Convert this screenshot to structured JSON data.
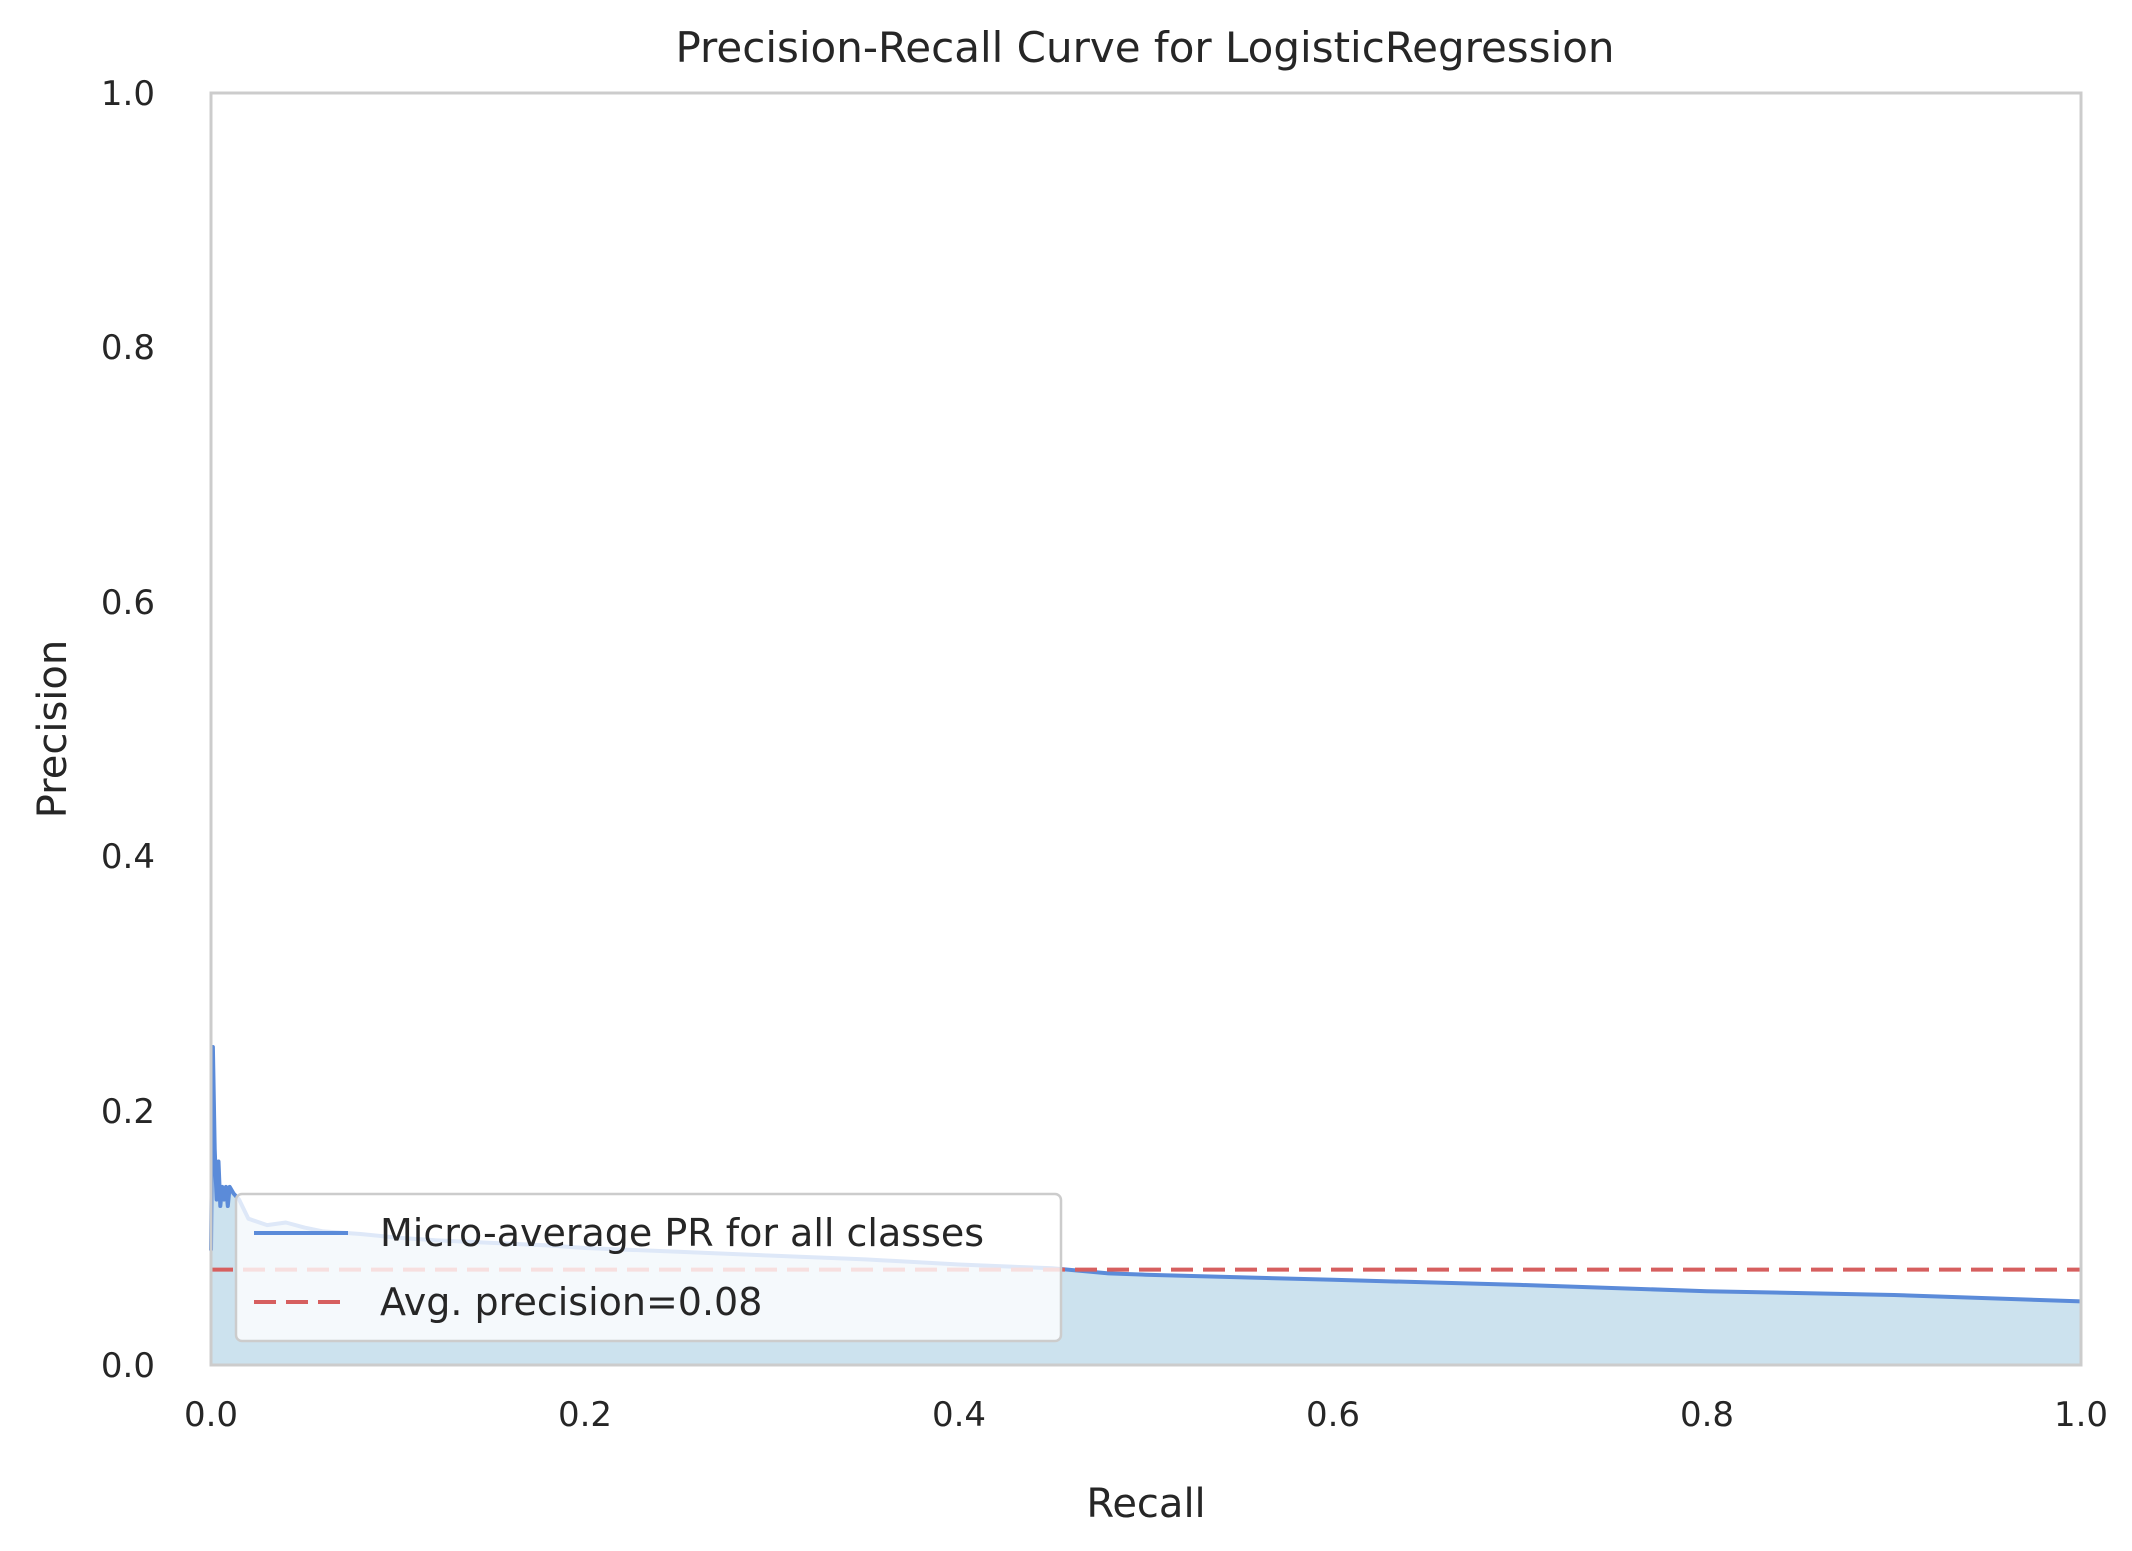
{
  "chart_data": {
    "type": "line",
    "title": "Precision-Recall Curve for LogisticRegression",
    "xlabel": "Recall",
    "ylabel": "Precision",
    "xlim": [
      0.0,
      1.0
    ],
    "ylim": [
      0.0,
      1.0
    ],
    "xticks": [
      "0.0",
      "0.2",
      "0.4",
      "0.6",
      "0.8",
      "1.0"
    ],
    "yticks": [
      "0.0",
      "0.2",
      "0.4",
      "0.6",
      "0.8",
      "1.0"
    ],
    "grid": false,
    "legend_position": "lower-left",
    "series": [
      {
        "name": "Micro-average PR for all classes",
        "style": "solid",
        "color": "#5b8bd9",
        "fill": "#cce2ee",
        "x": [
          0.0,
          0.001,
          0.002,
          0.003,
          0.004,
          0.005,
          0.006,
          0.007,
          0.008,
          0.009,
          0.01,
          0.012,
          0.015,
          0.02,
          0.03,
          0.04,
          0.05,
          0.06,
          0.08,
          0.1,
          0.12,
          0.15,
          0.18,
          0.2,
          0.25,
          0.3,
          0.35,
          0.4,
          0.45,
          0.48,
          0.5,
          0.6,
          0.7,
          0.8,
          0.9,
          1.0
        ],
        "y": [
          0.09,
          0.25,
          0.17,
          0.13,
          0.16,
          0.125,
          0.14,
          0.13,
          0.14,
          0.125,
          0.14,
          0.135,
          0.13,
          0.115,
          0.11,
          0.112,
          0.108,
          0.105,
          0.103,
          0.1,
          0.098,
          0.096,
          0.094,
          0.092,
          0.089,
          0.086,
          0.083,
          0.079,
          0.076,
          0.072,
          0.071,
          0.067,
          0.063,
          0.058,
          0.055,
          0.05
        ]
      },
      {
        "name": "Avg. precision=0.08",
        "style": "dashed",
        "color": "#d65f5f",
        "x": [
          0.0,
          1.0
        ],
        "y": [
          0.075,
          0.075
        ]
      }
    ]
  }
}
